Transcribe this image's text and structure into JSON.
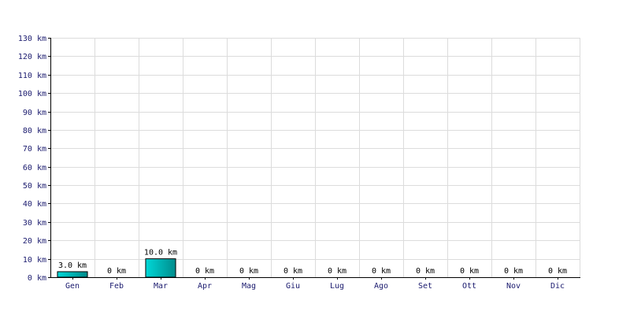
{
  "chart_data": {
    "type": "bar",
    "title": "",
    "xlabel": "",
    "ylabel": "",
    "unit": "km",
    "categories": [
      "Gen",
      "Feb",
      "Mar",
      "Apr",
      "Mag",
      "Giu",
      "Lug",
      "Ago",
      "Set",
      "Ott",
      "Nov",
      "Dic"
    ],
    "values": [
      3.0,
      0,
      10.0,
      0,
      0,
      0,
      0,
      0,
      0,
      0,
      0,
      0
    ],
    "data_labels": [
      "3.0 km",
      "0 km",
      "10.0 km",
      "0 km",
      "0 km",
      "0 km",
      "0 km",
      "0 km",
      "0 km",
      "0 km",
      "0 km",
      "0 km"
    ],
    "y_ticks": [
      0,
      10,
      20,
      30,
      40,
      50,
      60,
      70,
      80,
      90,
      100,
      110,
      120,
      130
    ],
    "y_tick_labels": [
      "0 km",
      "10 km",
      "20 km",
      "30 km",
      "40 km",
      "50 km",
      "60 km",
      "70 km",
      "80 km",
      "90 km",
      "100 km",
      "110 km",
      "120 km",
      "130 km"
    ],
    "ylim": [
      0,
      130
    ],
    "grid": true,
    "colors": {
      "bar_fill": "#00d8d8",
      "bar_fill_dark": "#008c8c",
      "grid": "#dcdcdc",
      "tick_text": "#1a1a6e"
    }
  }
}
